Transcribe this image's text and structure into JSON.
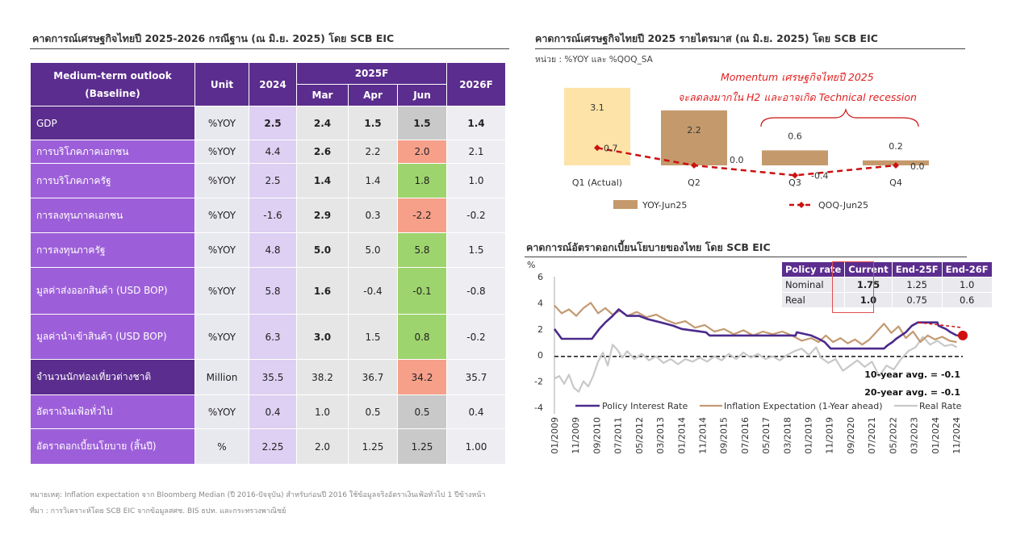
{
  "left": {
    "title": "คาดการณ์เศรษฐกิจไทยปี 2025-2026 กรณีฐาน (ณ มิ.ย. 2025) โดย SCB EIC",
    "header": {
      "outlook_line1": "Medium-term outlook",
      "outlook_line2": "(Baseline)",
      "unit": "Unit",
      "y2024": "2024",
      "y2025": "2025F",
      "mar": "Mar",
      "apr": "Apr",
      "jun": "Jun",
      "y2026": "2026F"
    },
    "rows": [
      {
        "label": "GDP",
        "unit": "%YOY",
        "v2024": "2.5",
        "mar": "2.4",
        "apr": "1.5",
        "jun": "1.5",
        "v2026": "1.4"
      },
      {
        "label": "การบริโภคภาคเอกชน",
        "unit": "%YOY",
        "v2024": "4.4",
        "mar": "2.6",
        "apr": "2.2",
        "jun": "2.0",
        "v2026": "2.1"
      },
      {
        "label": "การบริโภคภาครัฐ",
        "unit": "%YOY",
        "v2024": "2.5",
        "mar": "1.4",
        "apr": "1.4",
        "jun": "1.8",
        "v2026": "1.0"
      },
      {
        "label": "การลงทุนภาคเอกชน",
        "unit": "%YOY",
        "v2024": "-1.6",
        "mar": "2.9",
        "apr": "0.3",
        "jun": "-2.2",
        "v2026": "-0.2"
      },
      {
        "label": "การลงทุนภาครัฐ",
        "unit": "%YOY",
        "v2024": "4.8",
        "mar": "5.0",
        "apr": "5.0",
        "jun": "5.8",
        "v2026": "1.5"
      },
      {
        "label": "มูลค่าส่งออกสินค้า (USD BOP)",
        "unit": "%YOY",
        "v2024": "5.8",
        "mar": "1.6",
        "apr": "-0.4",
        "jun": "-0.1",
        "v2026": "-0.8"
      },
      {
        "label": "มูลค่านำเข้าสินค้า (USD BOP)",
        "unit": "%YOY",
        "v2024": "6.3",
        "mar": "3.0",
        "apr": "1.5",
        "jun": "0.8",
        "v2026": "-0.2"
      },
      {
        "label": "จำนวนนักท่องเที่ยวต่างชาติ",
        "unit": "Million",
        "v2024": "35.5",
        "mar": "38.2",
        "apr": "36.7",
        "jun": "34.2",
        "v2026": "35.7"
      },
      {
        "label": "อัตราเงินเฟ้อทั่วไป",
        "unit": "%YOY",
        "v2024": "0.4",
        "mar": "1.0",
        "apr": "0.5",
        "jun": "0.5",
        "v2026": "0.4"
      },
      {
        "label": "อัตราดอกเบี้ยนโยบาย (สิ้นปี)",
        "unit": "%",
        "v2024": "2.25",
        "mar": "2.0",
        "apr": "1.25",
        "jun": "1.25",
        "v2026": "1.00"
      }
    ],
    "colors": {
      "purple_dark": "#5b2d8e",
      "purple_light": "#9d5fd9",
      "up_green": "#9ed46e",
      "down_salmon": "#f6a08a",
      "neutral_grey": "#c9c9c9"
    },
    "note_line1": "หมายเหตุ: Inflation expectation จาก Bloomberg Median (ปี 2016-ปัจจุบัน) สำหรับก่อนปี 2016 ใช้ข้อมูลจริงอัตราเงินเฟ้อทั่วไป 1 ปีข้างหน้า",
    "note_line2": "ที่มา : การวิเคราะห์โดย SCB EIC จากข้อมูลสศช. BIS ธปท. และกระทรวงพาณิชย์"
  },
  "quarterly": {
    "title": "คาดการณ์เศรษฐกิจไทยปี 2025 รายไตรมาส (ณ มิ.ย. 2025) โดย SCB EIC",
    "unit_note": "หน่วย : %YOY และ %QOQ_SA",
    "annotation_line1": "Momentum เศรษฐกิจไทยปี 2025",
    "annotation_line2": "จะลดลงมากใน H2 และอาจเกิด Technical recession",
    "colors": {
      "actual_bar": "#fde3a7",
      "bar": "#c49a6c",
      "line": "#cc1010"
    }
  },
  "policy": {
    "title": "คาดการณ์อัตราดอกเบี้ยนโยบายของไทย โดย SCB EIC",
    "avg10": "10-year avg. = -0.1",
    "avg20": "20-year avg. = -0.1",
    "table": {
      "headers": [
        "Policy rate",
        "Current",
        "End-25F",
        "End-26F"
      ],
      "rows": [
        {
          "label": "Nominal",
          "current": "1.75",
          "end25": "1.25",
          "end26": "1.0"
        },
        {
          "label": "Real",
          "current": "1.0",
          "end25": "0.75",
          "end26": "0.6"
        }
      ]
    },
    "colors": {
      "policy": "#4b2a8c",
      "inflation": "#c39a72",
      "real": "#c8c8c8",
      "marker": "#d01010"
    }
  },
  "chart_data": [
    {
      "type": "bar",
      "categories": [
        "Q1 (Actual)",
        "Q2",
        "Q3",
        "Q4"
      ],
      "series": [
        {
          "name": "YOY-Jun25",
          "type": "bar",
          "values": [
            3.1,
            2.2,
            0.6,
            0.2
          ],
          "labels": [
            "3.1",
            "2.2",
            "0.6",
            "0.2"
          ]
        },
        {
          "name": "QOQ-Jun25",
          "type": "line",
          "values": [
            0.7,
            0.0,
            -0.4,
            0.0
          ],
          "labels": [
            "0.7",
            "0.0",
            "-0.4",
            "0.0"
          ]
        }
      ],
      "ylim": [
        -0.6,
        3.3
      ]
    },
    {
      "type": "line",
      "ylabel": "%",
      "ylim": [
        -4,
        6
      ],
      "yticks": [
        6,
        4,
        2,
        0,
        -2,
        -4
      ],
      "x_ticks": [
        "01/2009",
        "11/2009",
        "09/2010",
        "07/2011",
        "05/2012",
        "03/2013",
        "01/2014",
        "11/2014",
        "09/2015",
        "07/2016",
        "05/2017",
        "03/2018",
        "01/2019",
        "11/2019",
        "09/2020",
        "07/2021",
        "05/2022",
        "03/2023",
        "01/2024",
        "11/2024"
      ],
      "x_range": [
        2009.0,
        2025.85
      ],
      "series": [
        {
          "name": "Policy Interest Rate",
          "points": [
            [
              2009.0,
              2.0
            ],
            [
              2009.3,
              1.25
            ],
            [
              2010.55,
              1.25
            ],
            [
              2010.65,
              1.5
            ],
            [
              2010.85,
              2.0
            ],
            [
              2011.1,
              2.5
            ],
            [
              2011.4,
              3.0
            ],
            [
              2011.65,
              3.5
            ],
            [
              2012.0,
              3.0
            ],
            [
              2012.5,
              3.0
            ],
            [
              2012.85,
              2.75
            ],
            [
              2013.4,
              2.5
            ],
            [
              2013.9,
              2.25
            ],
            [
              2014.25,
              2.0
            ],
            [
              2015.25,
              1.75
            ],
            [
              2015.4,
              1.5
            ],
            [
              2018.95,
              1.5
            ],
            [
              2019.0,
              1.75
            ],
            [
              2019.6,
              1.5
            ],
            [
              2019.9,
              1.25
            ],
            [
              2020.15,
              1.0
            ],
            [
              2020.4,
              0.5
            ],
            [
              2022.6,
              0.5
            ],
            [
              2022.75,
              0.75
            ],
            [
              2022.95,
              1.0
            ],
            [
              2023.1,
              1.25
            ],
            [
              2023.3,
              1.5
            ],
            [
              2023.5,
              1.75
            ],
            [
              2023.75,
              2.25
            ],
            [
              2024.0,
              2.5
            ],
            [
              2024.8,
              2.5
            ],
            [
              2024.85,
              2.25
            ],
            [
              2025.15,
              2.0
            ],
            [
              2025.35,
              1.75
            ],
            [
              2025.6,
              1.5
            ]
          ]
        },
        {
          "name": "Inflation Expectation (1-Year ahead)",
          "points": [
            [
              2009.0,
              3.8
            ],
            [
              2009.3,
              3.2
            ],
            [
              2009.6,
              3.5
            ],
            [
              2009.9,
              3.0
            ],
            [
              2010.2,
              3.6
            ],
            [
              2010.5,
              4.0
            ],
            [
              2010.8,
              3.2
            ],
            [
              2011.1,
              3.6
            ],
            [
              2011.4,
              3.1
            ],
            [
              2011.7,
              3.4
            ],
            [
              2012.0,
              3.0
            ],
            [
              2012.4,
              3.3
            ],
            [
              2012.8,
              2.9
            ],
            [
              2013.2,
              3.1
            ],
            [
              2013.6,
              2.7
            ],
            [
              2014.0,
              2.4
            ],
            [
              2014.4,
              2.6
            ],
            [
              2014.8,
              2.1
            ],
            [
              2015.2,
              2.3
            ],
            [
              2015.6,
              1.8
            ],
            [
              2016.0,
              2.0
            ],
            [
              2016.4,
              1.6
            ],
            [
              2016.8,
              1.9
            ],
            [
              2017.2,
              1.5
            ],
            [
              2017.6,
              1.8
            ],
            [
              2018.0,
              1.6
            ],
            [
              2018.4,
              1.8
            ],
            [
              2018.8,
              1.5
            ],
            [
              2019.2,
              1.1
            ],
            [
              2019.6,
              1.3
            ],
            [
              2019.9,
              1.0
            ],
            [
              2020.2,
              1.5
            ],
            [
              2020.5,
              1.0
            ],
            [
              2020.8,
              1.3
            ],
            [
              2021.1,
              0.9
            ],
            [
              2021.4,
              1.2
            ],
            [
              2021.7,
              0.8
            ],
            [
              2022.0,
              1.2
            ],
            [
              2022.3,
              1.8
            ],
            [
              2022.6,
              2.4
            ],
            [
              2022.9,
              1.7
            ],
            [
              2023.2,
              2.2
            ],
            [
              2023.5,
              1.3
            ],
            [
              2023.8,
              1.8
            ],
            [
              2024.1,
              1.0
            ],
            [
              2024.4,
              1.5
            ],
            [
              2024.7,
              1.2
            ],
            [
              2025.0,
              1.4
            ],
            [
              2025.3,
              1.1
            ],
            [
              2025.6,
              1.0
            ]
          ]
        },
        {
          "name": "Real Rate",
          "points": [
            [
              2009.0,
              -1.8
            ],
            [
              2009.2,
              -1.6
            ],
            [
              2009.4,
              -2.2
            ],
            [
              2009.6,
              -1.5
            ],
            [
              2009.8,
              -2.5
            ],
            [
              2010.0,
              -2.8
            ],
            [
              2010.2,
              -2.0
            ],
            [
              2010.4,
              -2.4
            ],
            [
              2010.6,
              -1.6
            ],
            [
              2010.8,
              -0.5
            ],
            [
              2011.0,
              0.2
            ],
            [
              2011.2,
              -0.8
            ],
            [
              2011.4,
              0.8
            ],
            [
              2011.6,
              0.4
            ],
            [
              2011.8,
              -0.2
            ],
            [
              2012.0,
              0.3
            ],
            [
              2012.3,
              -0.3
            ],
            [
              2012.6,
              0.1
            ],
            [
              2012.9,
              -0.4
            ],
            [
              2013.2,
              -0.1
            ],
            [
              2013.5,
              -0.6
            ],
            [
              2013.8,
              -0.3
            ],
            [
              2014.1,
              -0.7
            ],
            [
              2014.4,
              -0.3
            ],
            [
              2014.7,
              -0.5
            ],
            [
              2015.0,
              -0.2
            ],
            [
              2015.3,
              -0.5
            ],
            [
              2015.6,
              -0.1
            ],
            [
              2015.9,
              -0.4
            ],
            [
              2016.2,
              0.1
            ],
            [
              2016.5,
              -0.3
            ],
            [
              2016.8,
              0.2
            ],
            [
              2017.1,
              -0.2
            ],
            [
              2017.4,
              0.1
            ],
            [
              2017.7,
              -0.3
            ],
            [
              2018.0,
              -0.1
            ],
            [
              2018.3,
              -0.4
            ],
            [
              2018.6,
              0.0
            ],
            [
              2018.9,
              0.3
            ],
            [
              2019.2,
              0.5
            ],
            [
              2019.5,
              0.0
            ],
            [
              2019.8,
              0.6
            ],
            [
              2020.0,
              -0.2
            ],
            [
              2020.3,
              -0.6
            ],
            [
              2020.6,
              -0.3
            ],
            [
              2020.9,
              -1.2
            ],
            [
              2021.2,
              -0.8
            ],
            [
              2021.5,
              -0.4
            ],
            [
              2021.8,
              -0.9
            ],
            [
              2022.1,
              -0.5
            ],
            [
              2022.4,
              -1.6
            ],
            [
              2022.7,
              -0.8
            ],
            [
              2023.0,
              -1.1
            ],
            [
              2023.3,
              -0.3
            ],
            [
              2023.6,
              0.3
            ],
            [
              2023.9,
              0.6
            ],
            [
              2024.2,
              1.4
            ],
            [
              2024.5,
              0.8
            ],
            [
              2024.8,
              1.1
            ],
            [
              2025.1,
              0.7
            ],
            [
              2025.4,
              0.8
            ],
            [
              2025.6,
              0.6
            ]
          ]
        }
      ],
      "reference_line": {
        "y": -0.1,
        "style": "dashed"
      },
      "end_marker": {
        "x": 2025.85,
        "y": 1.5
      }
    }
  ]
}
